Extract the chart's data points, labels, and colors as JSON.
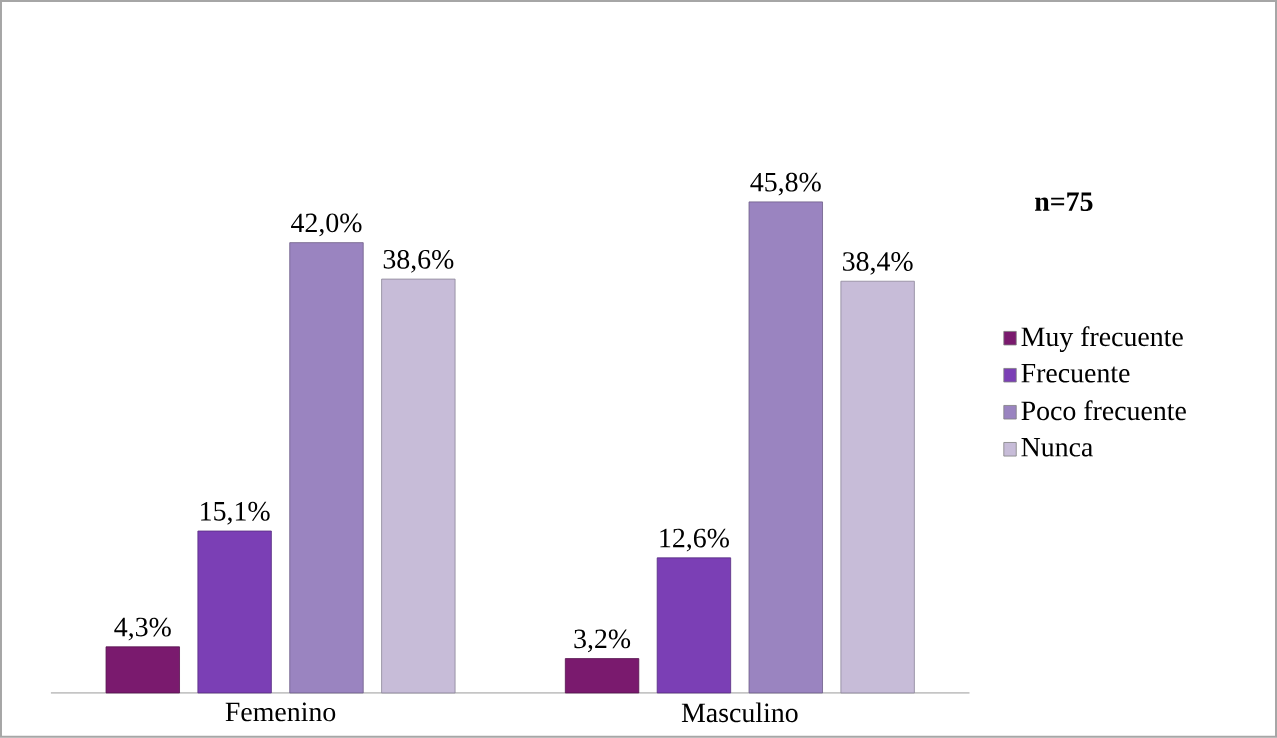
{
  "chart_data": {
    "type": "bar",
    "categories": [
      "Femenino",
      "Masculino"
    ],
    "series": [
      {
        "name": "Muy frecuente",
        "color": "#7a1a6e",
        "values": [
          4.3,
          3.2
        ],
        "value_labels": [
          "4,3%",
          "3,2%"
        ]
      },
      {
        "name": "Frecuente",
        "color": "#7b3fb5",
        "values": [
          15.1,
          12.6
        ],
        "value_labels": [
          "15,1%",
          "12,6%"
        ]
      },
      {
        "name": "Poco frecuente",
        "color": "#9a84c0",
        "values": [
          42.0,
          45.8
        ],
        "value_labels": [
          "42,0%",
          "45,8%"
        ]
      },
      {
        "name": "Nunca",
        "color": "#c7bcd8",
        "values": [
          38.6,
          38.4
        ],
        "value_labels": [
          "38,6%",
          "38,4%"
        ]
      }
    ],
    "annotations": [
      "**n=75**"
    ],
    "legend": "right"
  }
}
